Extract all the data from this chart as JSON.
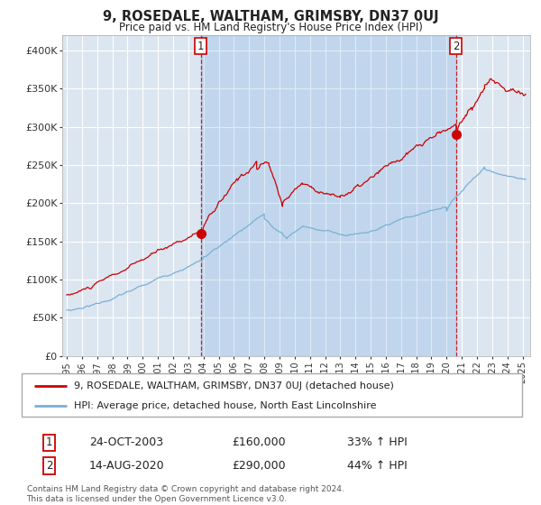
{
  "title": "9, ROSEDALE, WALTHAM, GRIMSBY, DN37 0UJ",
  "subtitle": "Price paid vs. HM Land Registry's House Price Index (HPI)",
  "plot_bg_color": "#dce6f1",
  "outer_bg_color": "#ffffff",
  "red_line_color": "#cc0000",
  "blue_line_color": "#7ab0d4",
  "marker_color": "#cc0000",
  "vline_color": "#cc0000",
  "grid_color": "#ffffff",
  "ylim": [
    0,
    420000
  ],
  "yticks": [
    0,
    50000,
    100000,
    150000,
    200000,
    250000,
    300000,
    350000,
    400000
  ],
  "ytick_labels": [
    "£0",
    "£50K",
    "£100K",
    "£150K",
    "£200K",
    "£250K",
    "£300K",
    "£350K",
    "£400K"
  ],
  "xlim_start": 1994.7,
  "xlim_end": 2025.5,
  "xtick_years": [
    1995,
    1996,
    1997,
    1998,
    1999,
    2000,
    2001,
    2002,
    2003,
    2004,
    2005,
    2006,
    2007,
    2008,
    2009,
    2010,
    2011,
    2012,
    2013,
    2014,
    2015,
    2016,
    2017,
    2018,
    2019,
    2020,
    2021,
    2022,
    2023,
    2024,
    2025
  ],
  "purchase1_x": 2003.81,
  "purchase1_y": 160000,
  "purchase2_x": 2020.62,
  "purchase2_y": 290000,
  "legend_line1": "9, ROSEDALE, WALTHAM, GRIMSBY, DN37 0UJ (detached house)",
  "legend_line2": "HPI: Average price, detached house, North East Lincolnshire",
  "ann1_date": "24-OCT-2003",
  "ann1_price": "£160,000",
  "ann1_hpi": "33% ↑ HPI",
  "ann2_date": "14-AUG-2020",
  "ann2_price": "£290,000",
  "ann2_hpi": "44% ↑ HPI",
  "footer": "Contains HM Land Registry data © Crown copyright and database right 2024.\nThis data is licensed under the Open Government Licence v3.0.",
  "shaded_region_alpha": 0.18,
  "shaded_region_color": "#4a90d9"
}
